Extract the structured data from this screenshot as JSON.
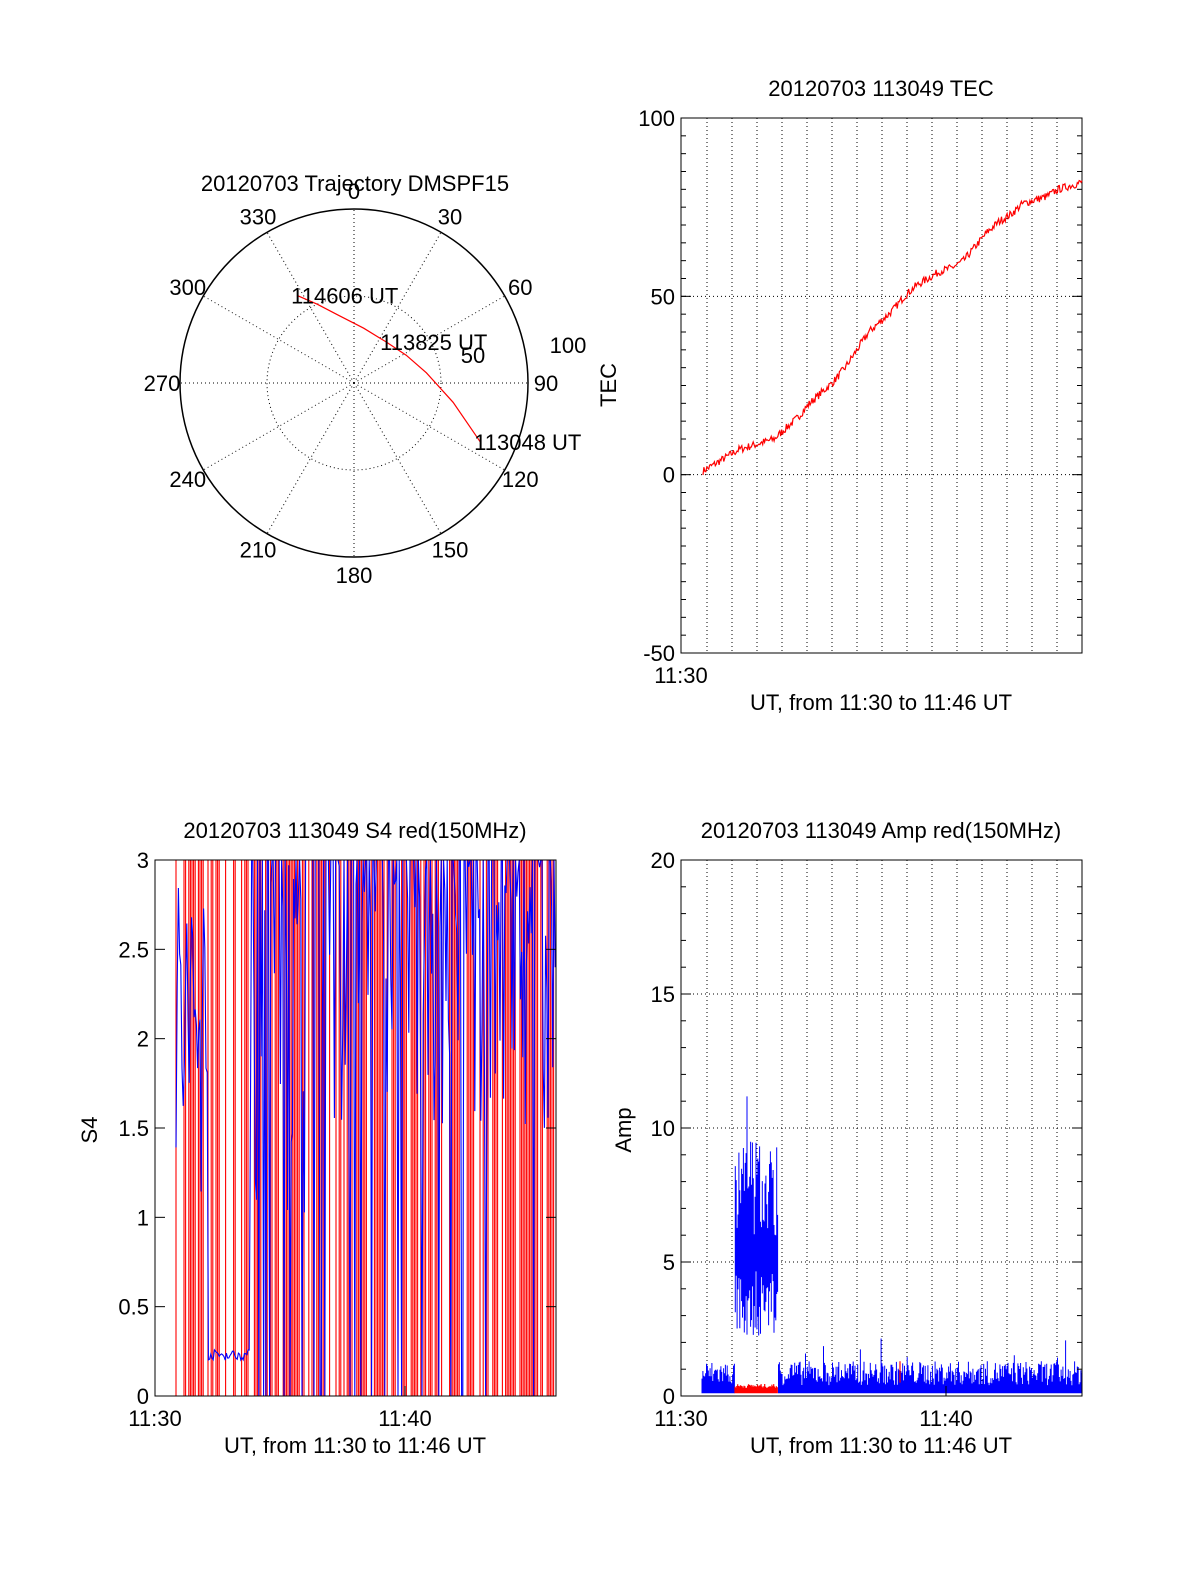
{
  "chart_data": [
    {
      "type": "polar",
      "title": "20120703 Trajectory DMSPF15",
      "azimuth_labels": [
        "0",
        "30",
        "60",
        "90",
        "120",
        "150",
        "180",
        "210",
        "240",
        "270",
        "300",
        "330"
      ],
      "radius_labels": [
        "50",
        "100"
      ],
      "rlim": [
        0,
        100
      ],
      "grid": true,
      "series": [
        {
          "color": "#ff0000",
          "points": [
            {
              "az": 327,
              "el": 60
            },
            {
              "az": 335,
              "el": 50
            },
            {
              "az": 347,
              "el": 40
            },
            {
              "az": 10,
              "el": 32
            },
            {
              "az": 38,
              "el": 30
            },
            {
              "az": 62,
              "el": 34
            },
            {
              "az": 82,
              "el": 42
            },
            {
              "az": 101,
              "el": 58
            },
            {
              "az": 115,
              "el": 80
            }
          ]
        }
      ],
      "annotations": [
        {
          "text": "114606 UT",
          "az": 327,
          "el": 60
        },
        {
          "text": "113825 UT",
          "az": 38,
          "el": 30
        },
        {
          "text": "113048 UT",
          "az": 115,
          "el": 80
        }
      ]
    },
    {
      "type": "line",
      "title": "20120703 113049 TEC",
      "xlabel": "UT, from 11:30 to 11:46 UT",
      "ylabel": "TEC",
      "xlim": [
        "11:30",
        "11:46"
      ],
      "ylim": [
        -50,
        100
      ],
      "x_tick_labels": [
        "11:30"
      ],
      "y_tick_labels": [
        "-50",
        "0",
        "50",
        "100"
      ],
      "grid": true,
      "series": [
        {
          "color": "#ff0000",
          "x": [
            0.0,
            0.5,
            1.0,
            1.5,
            2.0,
            2.5,
            3.0,
            3.5,
            4.0,
            4.5,
            5.0,
            5.5,
            6.0,
            6.5,
            7.0,
            7.5,
            8.0,
            8.5,
            9.0,
            9.5,
            10.0,
            10.5,
            11.0,
            11.5,
            12.0,
            12.5,
            13.0,
            13.5,
            14.0,
            14.5,
            15.0,
            15.5,
            16.0
          ],
          "y": [
            1,
            3,
            5,
            7,
            8,
            9,
            10,
            13,
            16,
            20,
            23,
            26,
            30,
            35,
            40,
            43,
            46,
            50,
            53,
            55,
            57,
            58,
            60,
            64,
            68,
            71,
            73,
            76,
            77,
            78,
            80,
            81,
            82
          ]
        }
      ]
    },
    {
      "type": "line",
      "title": "20120703 113049 S4 red(150MHz)",
      "xlabel": "UT, from 11:30 to 11:46 UT",
      "ylabel": "S4",
      "xlim": [
        "11:30",
        "11:46"
      ],
      "ylim": [
        0,
        3
      ],
      "x_tick_labels": [
        "11:30",
        "11:40"
      ],
      "y_tick_labels": [
        "0",
        "0.5",
        "1",
        "1.5",
        "2",
        "2.5",
        "3"
      ],
      "grid": true,
      "series": [
        {
          "color": "#ff0000",
          "note_kind": "dense"
        },
        {
          "color": "#0000ff",
          "note_kind": "dense"
        }
      ]
    },
    {
      "type": "line",
      "title": "20120703 113049 Amp red(150MHz)",
      "xlabel": "UT, from 11:30 to 11:46 UT",
      "ylabel": "Amp",
      "xlim": [
        "11:30",
        "11:46"
      ],
      "ylim": [
        0,
        20
      ],
      "x_tick_labels": [
        "11:30",
        "11:40"
      ],
      "y_tick_labels": [
        "0",
        "5",
        "10",
        "15",
        "20"
      ],
      "grid": true,
      "series": [
        {
          "color": "#0000ff",
          "note_kind": "dense"
        },
        {
          "color": "#ff0000",
          "note_kind": "dense"
        }
      ]
    }
  ]
}
